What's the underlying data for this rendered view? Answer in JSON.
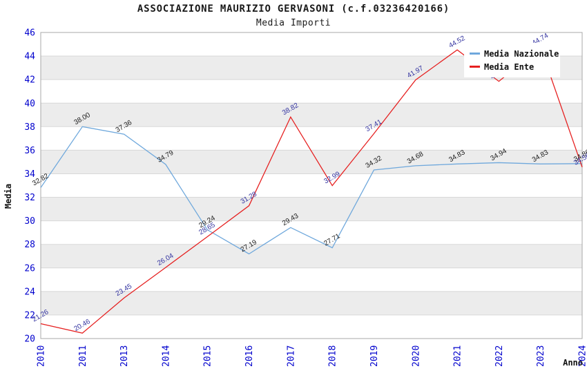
{
  "header": {
    "title": "ASSOCIAZIONE MAURIZIO GERVASONI (c.f.03236420166)",
    "subtitle": "Media Importi"
  },
  "chart_data": {
    "type": "line",
    "title": "ASSOCIAZIONE MAURIZIO GERVASONI (c.f.03236420166)",
    "subtitle": "Media Importi",
    "categories": [
      "2010",
      "2011",
      "2013",
      "2014",
      "2015",
      "2016",
      "2017",
      "2018",
      "2019",
      "2020",
      "2021",
      "2022",
      "2023",
      "2024"
    ],
    "series": [
      {
        "name": "Media Nazionale",
        "color": "#6fa8dc",
        "label_color": "#1a1a1a",
        "values": [
          32.82,
          38.0,
          37.36,
          34.79,
          29.24,
          27.19,
          29.43,
          27.71,
          34.32,
          34.68,
          34.83,
          34.94,
          34.83,
          34.86
        ]
      },
      {
        "name": "Media Ente",
        "color": "#e62020",
        "label_color": "#3333a0",
        "values": [
          21.26,
          20.46,
          23.45,
          26.04,
          28.65,
          31.28,
          38.82,
          32.99,
          37.41,
          41.97,
          44.52,
          41.85,
          44.74,
          34.56
        ]
      }
    ],
    "xlabel": "Anno",
    "ylabel": "Media",
    "ylim": [
      20,
      46
    ],
    "ytick_step": 2,
    "grid": true,
    "legend_position": "top-right"
  },
  "style": {
    "tick_color": "#0000cd",
    "band_gray": "#ececec",
    "band_white": "#ffffff",
    "grid_color": "#d8d8d8",
    "border_color": "#a8a8a8",
    "background": "#ffffff"
  }
}
